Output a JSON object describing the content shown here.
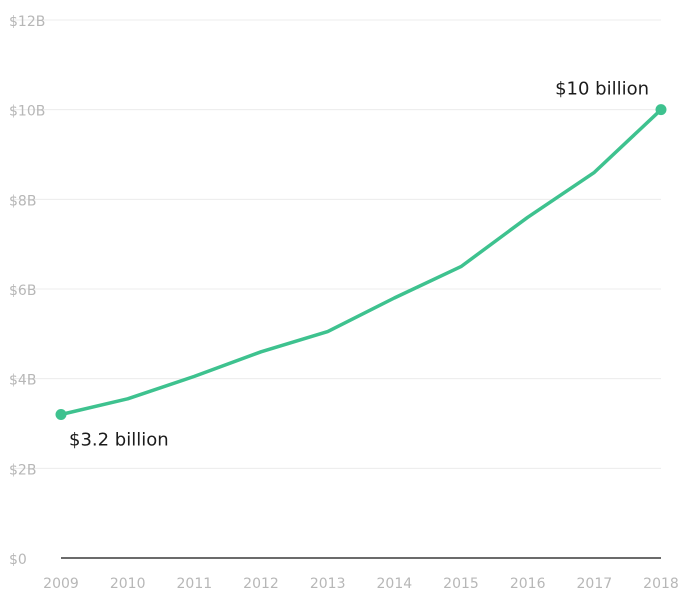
{
  "chart_data": {
    "type": "line",
    "title": "",
    "xlabel": "",
    "ylabel": "",
    "x": [
      "2009",
      "2010",
      "2011",
      "2012",
      "2013",
      "2014",
      "2015",
      "2016",
      "2017",
      "2018"
    ],
    "series": [
      {
        "values": [
          3.2,
          3.55,
          4.05,
          4.6,
          5.05,
          5.8,
          6.5,
          7.6,
          8.6,
          10.0
        ]
      }
    ],
    "ylim": [
      0,
      12
    ],
    "yticks": [
      0,
      2,
      4,
      6,
      8,
      10,
      12
    ],
    "ytick_labels": [
      "$0",
      "$2B",
      "$4B",
      "$6B",
      "$8B",
      "$10B",
      "$12B"
    ],
    "grid": true,
    "line_color": "#3ec28f",
    "annotations": [
      {
        "text": "$3.2 billion",
        "x": "2009",
        "y": 3.2
      },
      {
        "text": "$10 billion",
        "x": "2018",
        "y": 10.0
      }
    ]
  }
}
